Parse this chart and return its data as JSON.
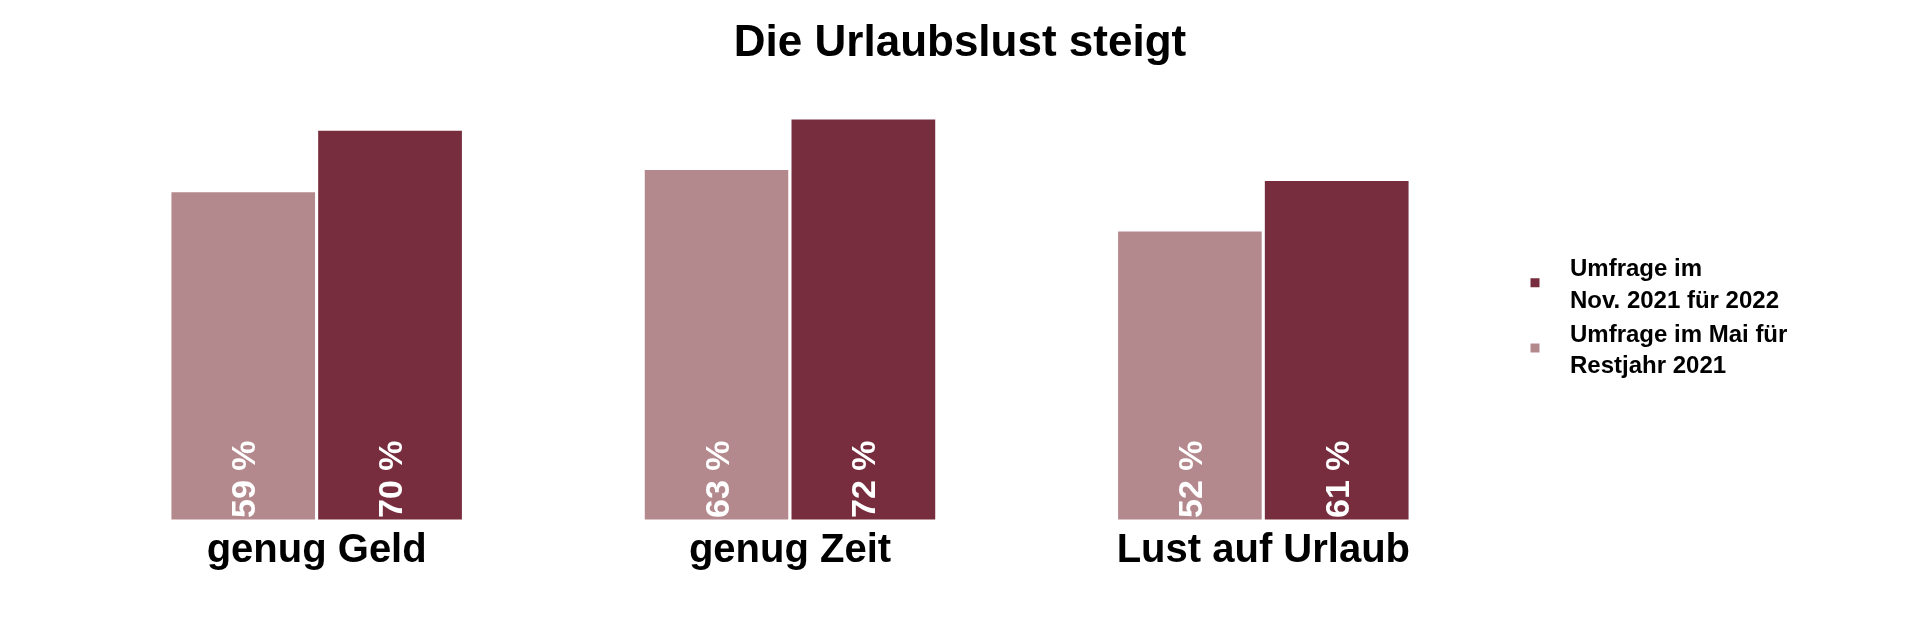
{
  "chart_data": {
    "type": "bar",
    "title": "Die Urlaubslust steigt",
    "categories": [
      "genug Geld",
      "genug Zeit",
      "Lust auf Urlaub"
    ],
    "series": [
      {
        "name": "Umfrage im Mai für\nRestjahr 2021",
        "color": "#b4898e",
        "values": [
          59,
          63,
          52
        ],
        "value_labels": [
          "59 %",
          "63 %",
          "52 %"
        ]
      },
      {
        "name": "Umfrage im\nNov. 2021 für 2022",
        "color": "#772d3e",
        "values": [
          70,
          72,
          61
        ],
        "value_labels": [
          "70 %",
          "72 %",
          "61 %"
        ]
      }
    ],
    "legend": "right"
  }
}
